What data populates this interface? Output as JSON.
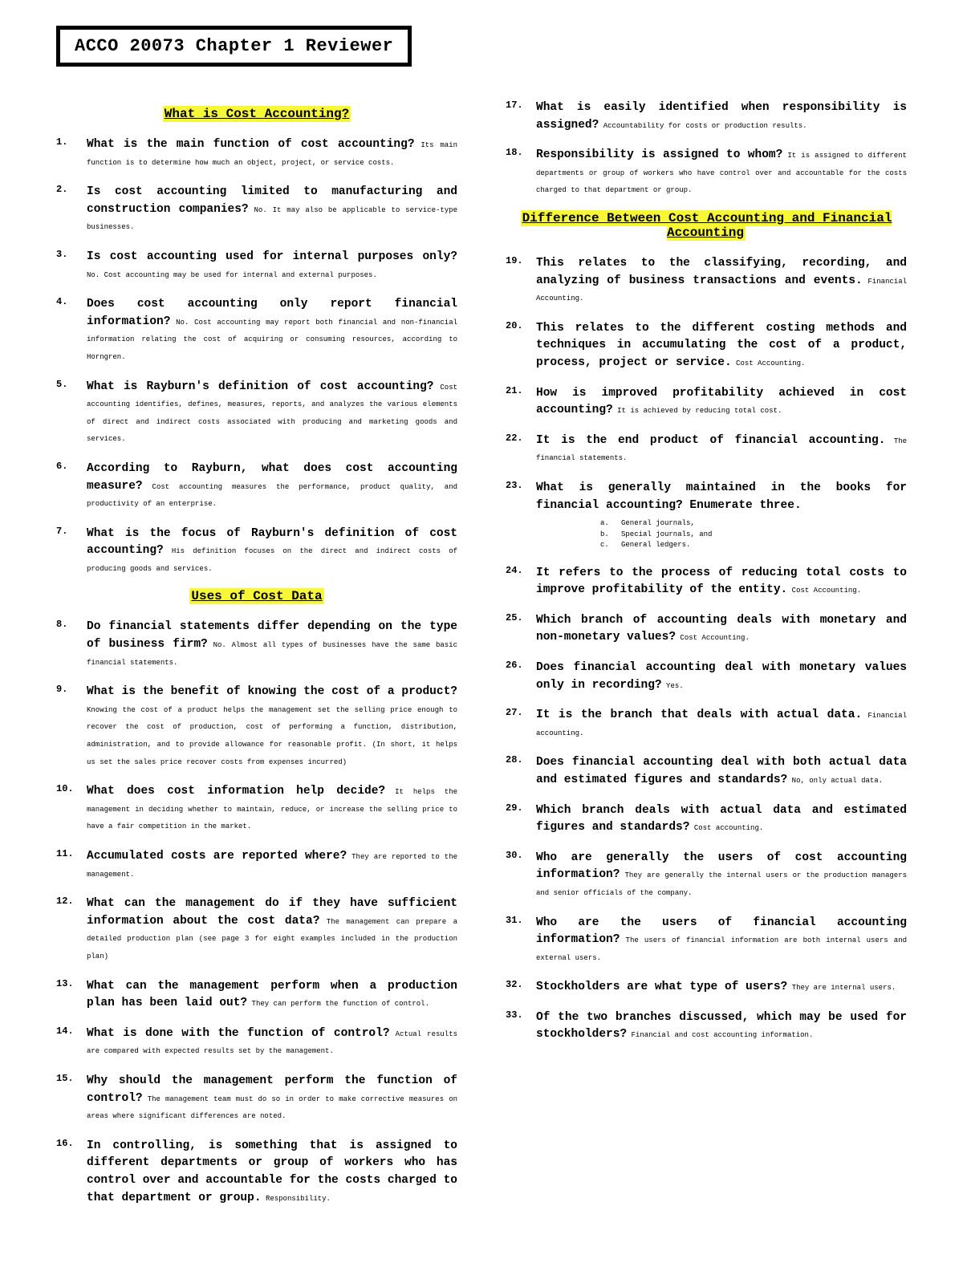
{
  "title": "ACCO 20073 Chapter 1 Reviewer",
  "sections": {
    "s1": "What is Cost Accounting?",
    "s2": "Uses of Cost Data",
    "s3": "Difference Between Cost Accounting and Financial Accounting"
  },
  "items": {
    "1": {
      "q": "What is the main function of cost accounting?",
      "a": " Its main function is to determine how much an object, project, or service costs."
    },
    "2": {
      "q": "Is cost accounting limited to manufacturing and construction companies?",
      "a": " No. It may also be applicable to service-type businesses."
    },
    "3": {
      "q": "Is cost accounting used for internal purposes only?",
      "a": " No. Cost accounting may be used for internal and external purposes."
    },
    "4": {
      "q": "Does cost accounting only report financial information?",
      "a": " No. Cost accounting may report both financial and non-financial information relating the cost of acquiring or consuming resources, according to Horngren."
    },
    "5": {
      "q": "What is Rayburn's definition of cost accounting?",
      "a": " Cost accounting identifies, defines, measures, reports, and analyzes the various elements of direct and indirect costs associated with producing and marketing goods and services."
    },
    "6": {
      "q": "According to Rayburn, what does cost accounting measure?",
      "a": " Cost accounting measures the performance, product quality, and productivity of an enterprise."
    },
    "7": {
      "q": "What is the focus of Rayburn's definition of cost accounting?",
      "a": " His definition focuses on the direct and indirect costs of producing goods and services."
    },
    "8": {
      "q": "Do financial statements differ depending on the type of business firm?",
      "a": " No. Almost all types of businesses have the same basic financial statements."
    },
    "9": {
      "q": "What is the benefit of knowing the cost of a product?",
      "a": " Knowing the cost of a product helps the management set the selling price enough to recover the cost of production, cost of performing a function, distribution, administration, and to provide allowance for reasonable profit. (In short, it helps us set the sales price recover costs from expenses incurred)"
    },
    "10": {
      "q": "What does cost information help decide?",
      "a": " It helps the management in deciding whether to maintain, reduce, or increase the selling price to have a fair competition in the market."
    },
    "11": {
      "q": "Accumulated costs are reported where?",
      "a": " They are reported to the management."
    },
    "12": {
      "q": "What can the management do if they have sufficient information about the cost data?",
      "a": " The management can prepare a detailed production plan (see page 3 for eight examples included in the production plan)"
    },
    "13": {
      "q": "What can the management perform when a production plan has been laid out?",
      "a": " They can perform the function of control."
    },
    "14": {
      "q": "What is done with the function of control?",
      "a": " Actual results are compared with expected results set by the management."
    },
    "15": {
      "q": "Why should the management perform the function of control?",
      "a": " The management team must do so in order to make corrective measures on areas where significant differences are noted."
    },
    "16": {
      "q": "In controlling, is something that is assigned to different departments or group of workers who has control over and accountable for the costs charged to that department or group.",
      "a": " Responsibility."
    },
    "17": {
      "q": "What is easily identified when responsibility is assigned?",
      "a": " Accountability for costs or production results."
    },
    "18": {
      "q": "Responsibility is assigned to whom?",
      "a": " It is assigned to different departments or group of workers who have control over and accountable for the costs charged to that department or group."
    },
    "19": {
      "q": "This relates to the classifying, recording, and analyzing of business transactions and events.",
      "a": " Financial Accounting."
    },
    "20": {
      "q": "This relates to the different costing methods and techniques in accumulating the cost of a product, process, project or service.",
      "a": " Cost Accounting."
    },
    "21": {
      "q": "How is improved profitability achieved in cost accounting?",
      "a": " It is achieved by reducing total cost."
    },
    "22": {
      "q": "It is the end product of financial accounting.",
      "a": " The financial statements."
    },
    "23": {
      "q": "What is generally maintained in the books for financial accounting? Enumerate three.",
      "a": ""
    },
    "23sub": {
      "a": "General journals,",
      "b": "Special journals, and",
      "c": "General ledgers."
    },
    "24": {
      "q": "It refers to the process of reducing total costs to improve profitability of the entity.",
      "a": " Cost Accounting."
    },
    "25": {
      "q": "Which branch of accounting deals with monetary and non-monetary values?",
      "a": " Cost Accounting."
    },
    "26": {
      "q": "Does financial accounting deal with monetary values only in recording?",
      "a": " Yes."
    },
    "27": {
      "q": "It is the branch that deals with actual data.",
      "a": " Financial accounting."
    },
    "28": {
      "q": "Does financial accounting deal with both actual data and estimated figures and standards?",
      "a": " No, only actual data."
    },
    "29": {
      "q": "Which branch deals with actual data and estimated figures and standards?",
      "a": " Cost accounting."
    },
    "30": {
      "q": "Who are generally the users of cost accounting information?",
      "a": " They are generally the internal users or the production managers and senior officials of the company."
    },
    "31": {
      "q": "Who are the users of financial accounting information?",
      "a": " The users of financial information are both internal users and external users."
    },
    "32": {
      "q": "Stockholders are what type of users?",
      "a": " They are internal users."
    },
    "33": {
      "q": "Of the two branches discussed, which may be used for stockholders?",
      "a": " Financial and cost accounting information."
    }
  }
}
